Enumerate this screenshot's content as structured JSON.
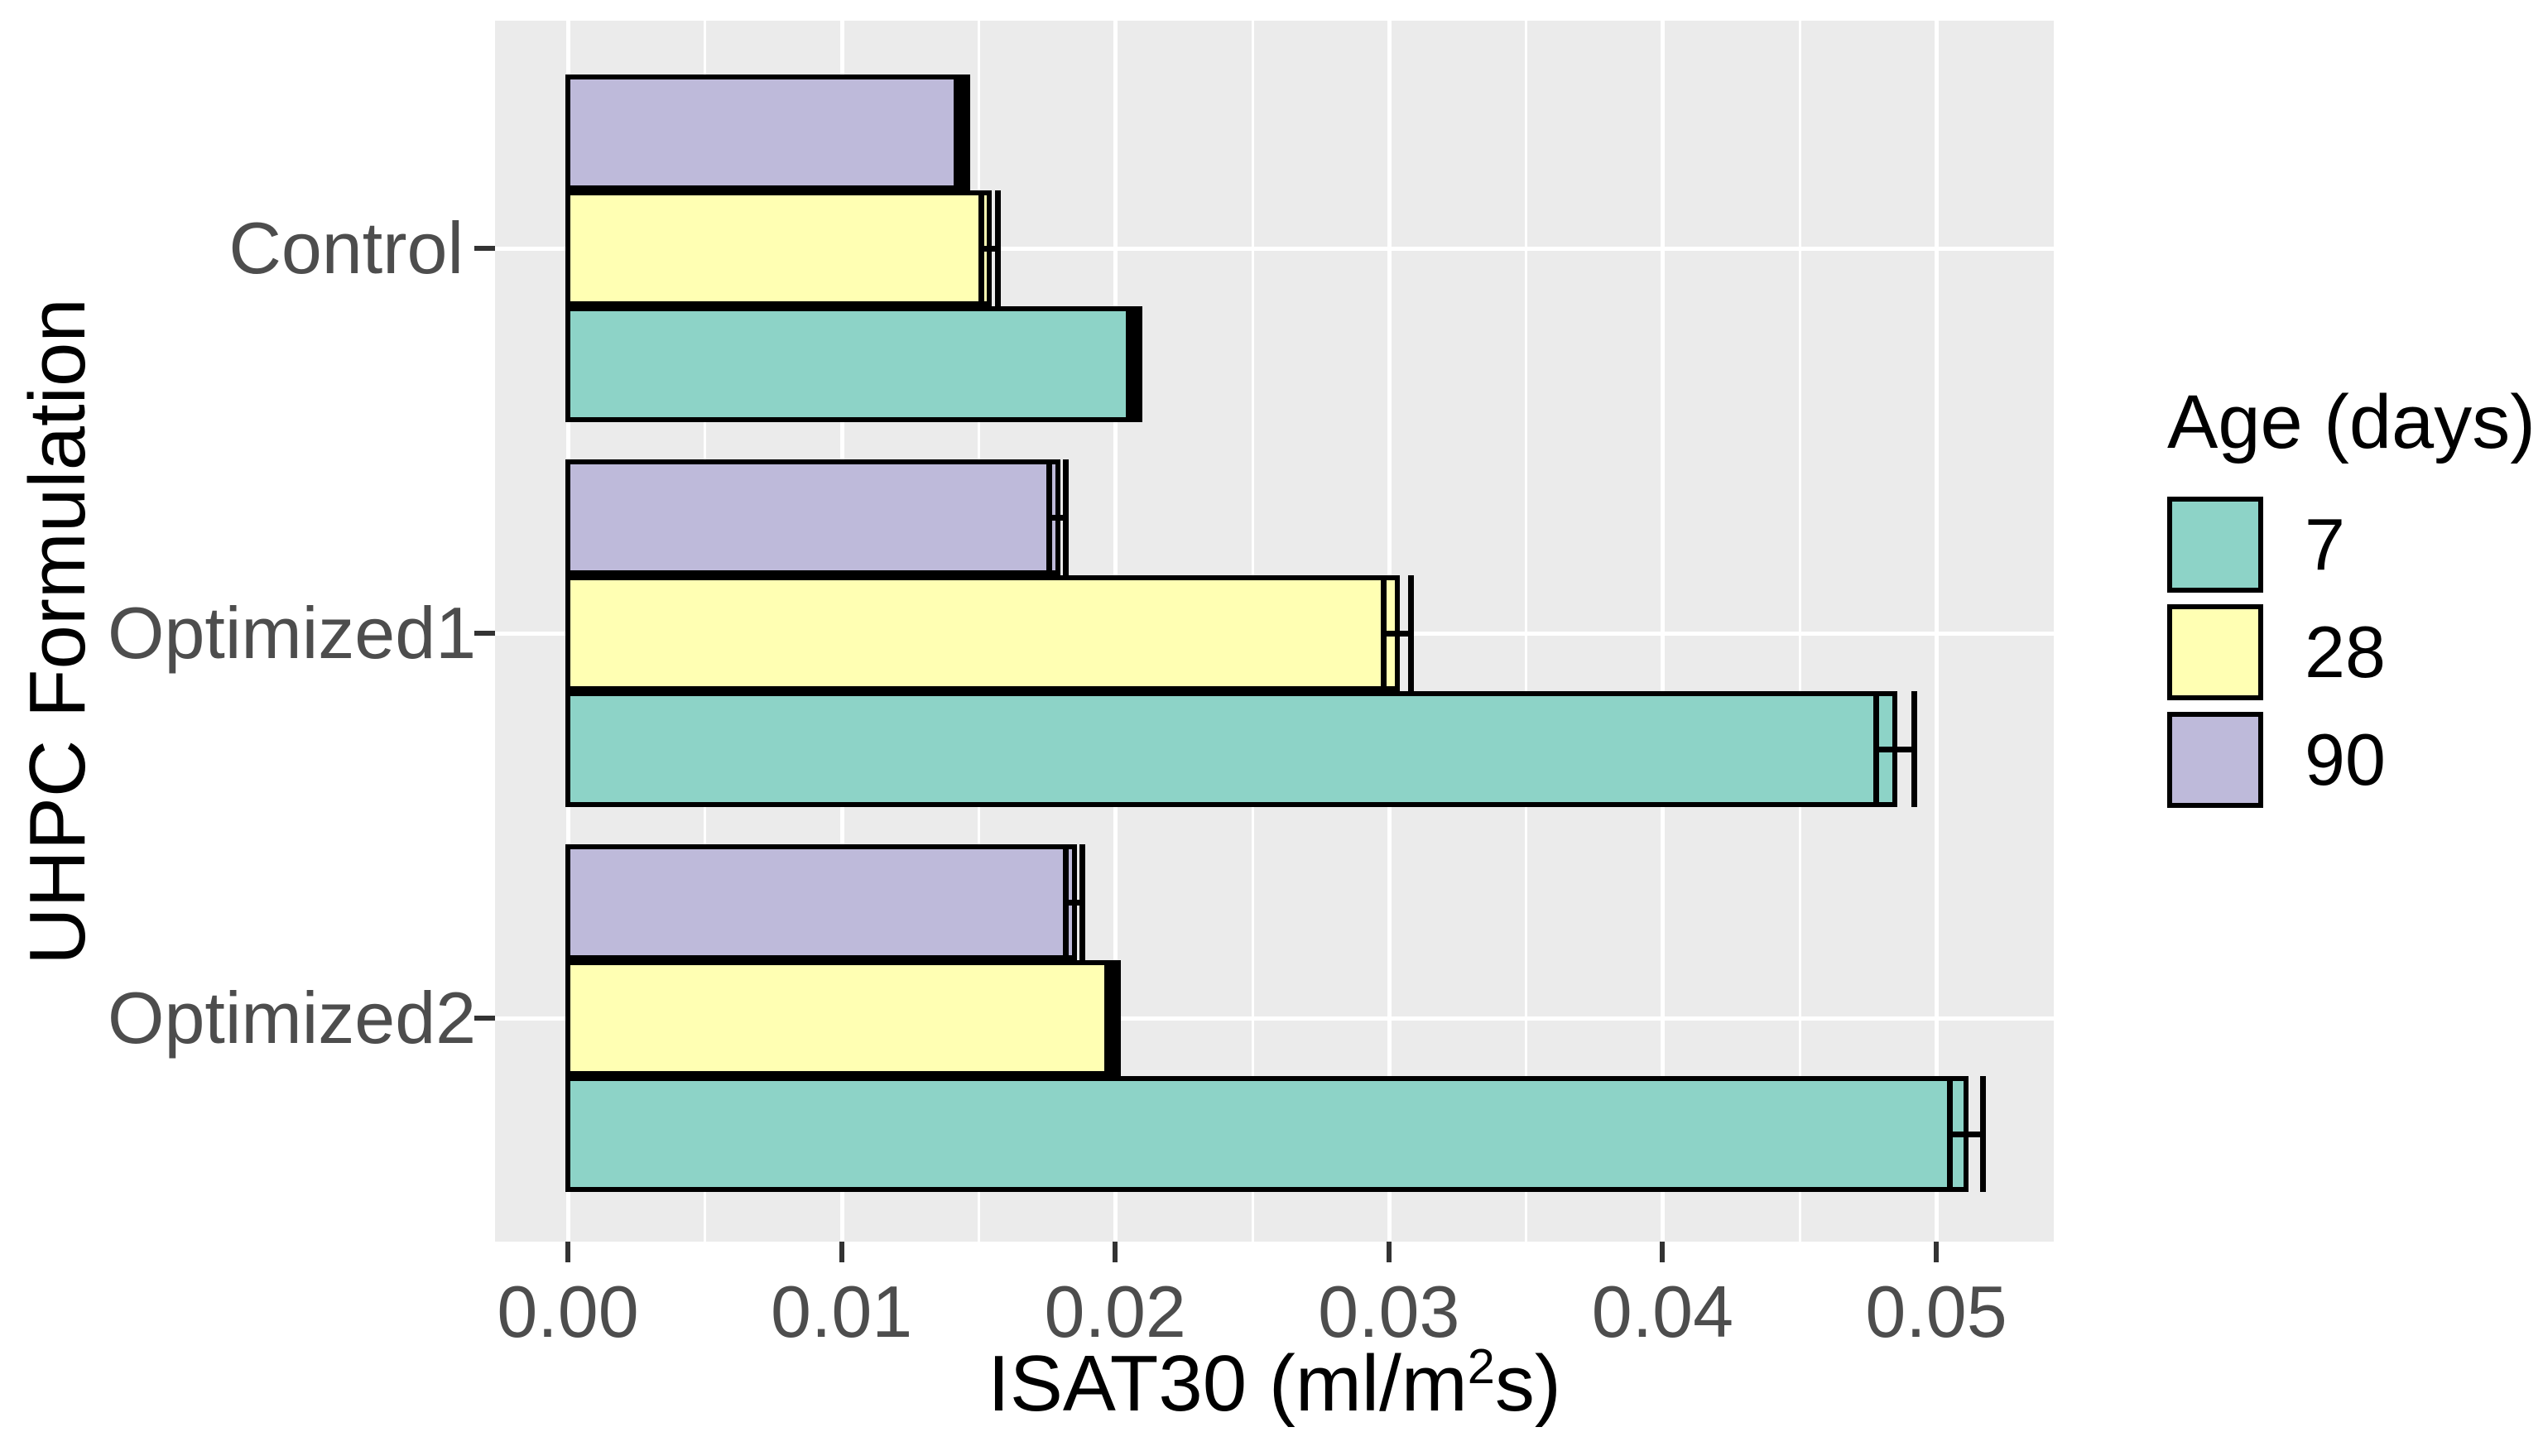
{
  "chart_data": {
    "type": "bar",
    "orientation": "horizontal",
    "title": "",
    "xlabel": "ISAT30 (ml/m2s)",
    "xlabel_parts": {
      "pre": "ISAT30 (ml/m",
      "sup": "2",
      "post": "s)"
    },
    "ylabel": "UHPC Formulation",
    "categories": [
      "Control",
      "Optimized1",
      "Optimized2"
    ],
    "series": [
      {
        "name": "7",
        "color": "#8dd3c7",
        "values": [
          0.0207,
          0.0485,
          0.0511
        ],
        "errors": [
          0.0002,
          0.0007,
          0.0006
        ]
      },
      {
        "name": "28",
        "color": "#ffffb3",
        "values": [
          0.0154,
          0.0303,
          0.0199
        ],
        "errors": [
          0.0003,
          0.0005,
          0.0002
        ]
      },
      {
        "name": "90",
        "color": "#bebada",
        "values": [
          0.0144,
          0.0179,
          0.0185
        ],
        "errors": [
          0.0002,
          0.0003,
          0.0003
        ]
      }
    ],
    "group_order_top_to_bottom": [
      "90",
      "28",
      "7"
    ],
    "x_ticks": [
      0.0,
      0.01,
      0.02,
      0.03,
      0.04,
      0.05
    ],
    "x_tick_labels": [
      "0.00",
      "0.01",
      "0.02",
      "0.03",
      "0.04",
      "0.05"
    ],
    "x_minor_ticks": [
      0.005,
      0.015,
      0.025,
      0.035,
      0.045
    ],
    "xlim": [
      -0.0027,
      0.0543
    ],
    "grid": true,
    "legend": {
      "title": "Age (days)",
      "position": "right",
      "entries": [
        "7",
        "28",
        "90"
      ]
    },
    "styles": {
      "panel_bg": "#ebebeb",
      "grid_color": "#ffffff",
      "bar_border_color": "#000000",
      "errorbar_color": "#000000",
      "axis_tick_color": "#333333",
      "tick_label_color": "#4d4d4d",
      "title_color": "#000000"
    }
  }
}
